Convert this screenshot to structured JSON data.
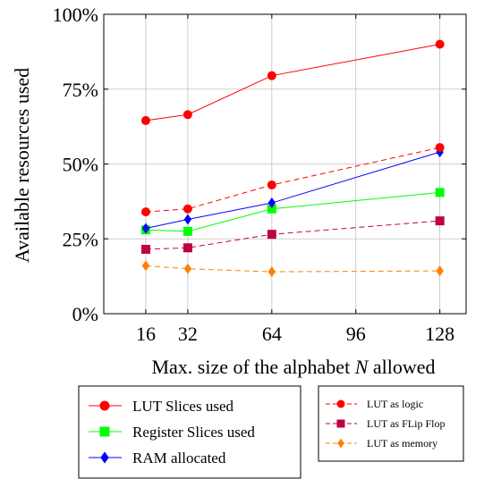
{
  "chart_data": {
    "type": "line",
    "title": "",
    "xlabel_prefix": "Max. size of the alphabet ",
    "xlabel_var": "N",
    "xlabel_suffix": " allowed",
    "ylabel": "Available resources used",
    "x_ticks": [
      "16",
      "32",
      "64",
      "96",
      "128"
    ],
    "x_tick_values": [
      16,
      32,
      64,
      96,
      128
    ],
    "y_ticks": [
      "0%",
      "25%",
      "50%",
      "75%",
      "100%"
    ],
    "y_tick_values": [
      0,
      25,
      50,
      75,
      100
    ],
    "xlim": [
      0,
      138
    ],
    "ylim": [
      0,
      100
    ],
    "grid": true,
    "series": [
      {
        "name": "LUT Slices used",
        "color": "#ff0000",
        "dash": "solid",
        "marker": "circle",
        "x": [
          16,
          32,
          64,
          128
        ],
        "y": [
          64.5,
          66.5,
          79.5,
          90
        ]
      },
      {
        "name": "Register Slices used",
        "color": "#00ff00",
        "dash": "solid",
        "marker": "square",
        "x": [
          16,
          32,
          64,
          128
        ],
        "y": [
          28,
          27.5,
          35,
          40.5
        ]
      },
      {
        "name": "RAM allocated",
        "color": "#0000ff",
        "dash": "solid",
        "marker": "diamond",
        "x": [
          16,
          32,
          64,
          128
        ],
        "y": [
          28.5,
          31.5,
          37,
          54
        ]
      },
      {
        "name": "LUT as logic",
        "color": "#ff0000",
        "dash": "dashed",
        "marker": "circle",
        "x": [
          16,
          32,
          64,
          128
        ],
        "y": [
          34,
          35,
          43,
          55.5
        ]
      },
      {
        "name": "LUT as FLip Flop",
        "color": "#bf0040",
        "dash": "dashed",
        "marker": "square",
        "x": [
          16,
          32,
          64,
          128
        ],
        "y": [
          21.5,
          22,
          26.5,
          31
        ]
      },
      {
        "name": "LUT as memory",
        "color": "#ff8000",
        "dash": "dashed",
        "marker": "diamond",
        "x": [
          16,
          32,
          64,
          128
        ],
        "y": [
          16,
          15,
          14,
          14.3
        ]
      }
    ],
    "legends": [
      {
        "entries": [
          "LUT Slices used",
          "Register Slices used",
          "RAM allocated"
        ]
      },
      {
        "entries": [
          "LUT as logic",
          "LUT as FLip Flop",
          "LUT as memory"
        ]
      }
    ]
  }
}
